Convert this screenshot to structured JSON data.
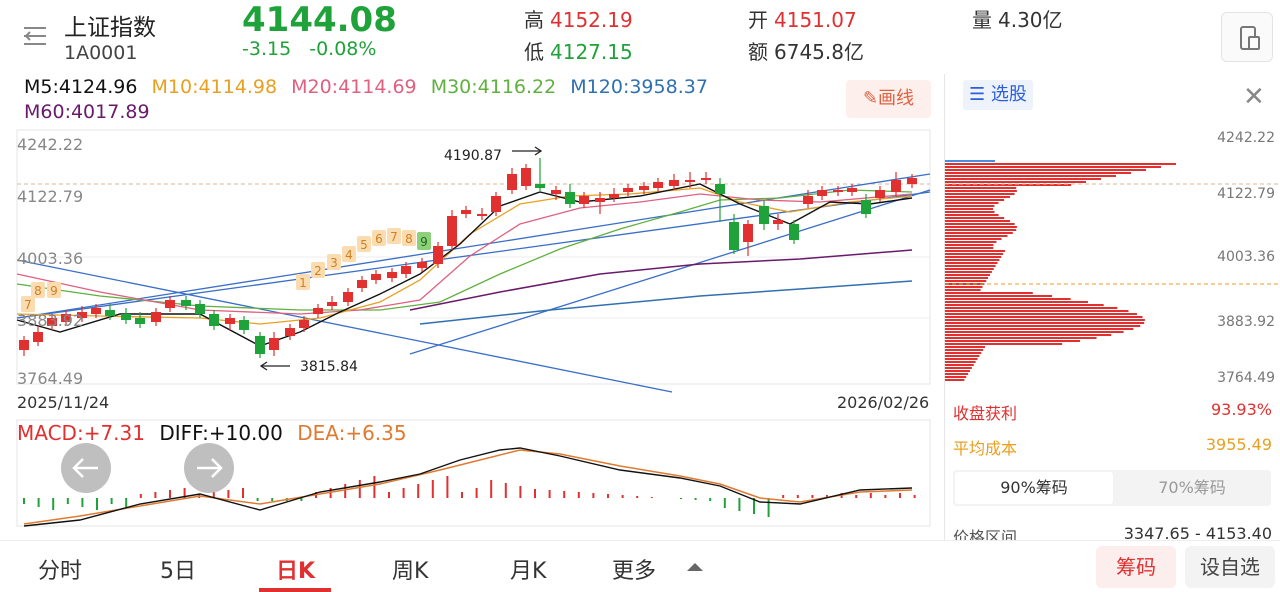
{
  "header": {
    "name": "上证指数",
    "code": "1A0001",
    "price": "4144.08",
    "change": "-3.15",
    "change_pct": "-0.08%",
    "high_label": "高",
    "high": "4152.19",
    "low_label": "低",
    "low": "4127.15",
    "open_label": "开",
    "open": "4151.07",
    "amount_label": "额",
    "amount": "6745.8亿",
    "volume_label": "量",
    "volume": "4.30亿"
  },
  "ma": {
    "m5": "M5:4124.96",
    "m10": "M10:4114.98",
    "m20": "M20:4114.69",
    "m30": "M30:4116.22",
    "m120": "M120:3958.37",
    "m60": "M60:4017.89",
    "colors": {
      "m5": "#111111",
      "m10": "#e8a020",
      "m20": "#e06080",
      "m30": "#60b040",
      "m120": "#3070b0",
      "m60": "#6a1a6a"
    }
  },
  "draw_button": "画线",
  "price_axis": [
    "4242.22",
    "4122.79",
    "4003.36",
    "3883.92",
    "3764.49"
  ],
  "annotations": {
    "high_mark": "4190.87",
    "low_mark": "3815.84"
  },
  "td_seq": [
    "1",
    "2",
    "3",
    "4",
    "5",
    "6",
    "7",
    "8",
    "9"
  ],
  "td_seq_left": [
    "8",
    "9",
    "7"
  ],
  "dates": {
    "start": "2025/11/24",
    "end": "2026/02/26"
  },
  "macd": {
    "macd": "MACD:+7.31",
    "diff": "DIFF:+10.00",
    "dea": "DEA:+6.35"
  },
  "right_panel": {
    "select_label": "选股",
    "profit_label": "收盘获利",
    "profit": "93.93%",
    "cost_label": "平均成本",
    "cost": "3955.49",
    "tab_90": "90%筹码",
    "tab_70": "70%筹码",
    "range_label": "价格区间",
    "range": "3347.65 - 4153.40",
    "axis": [
      "4242.22",
      "4122.79",
      "4003.36",
      "3883.92",
      "3764.49"
    ]
  },
  "bottom_nav": {
    "tabs": [
      "分时",
      "5日",
      "日K",
      "周K",
      "月K",
      "更多"
    ],
    "chip_button": "筹码",
    "watchlist_button": "设自选"
  },
  "colors": {
    "up": "#e03030",
    "down": "#1fa23a",
    "accent_blue": "#2b5fd9"
  }
}
